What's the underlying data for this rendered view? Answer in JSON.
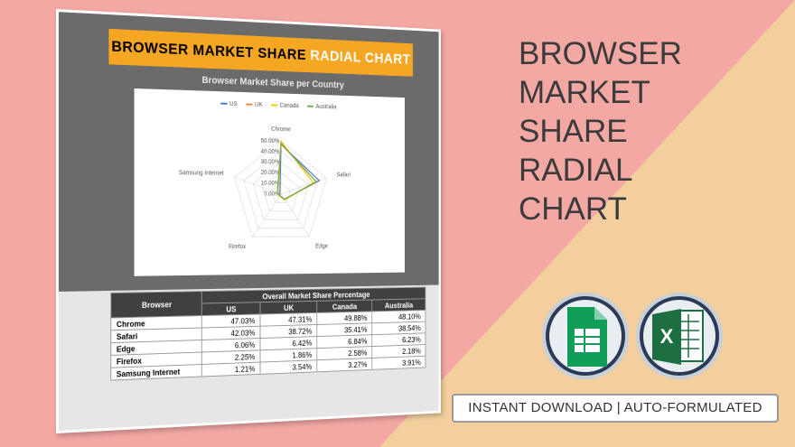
{
  "sheet_title": {
    "main": "BROWSER MARKET SHARE",
    "accent": "RADIAL CHART"
  },
  "chart_data": {
    "type": "radar",
    "title": "Browser Market Share per Country",
    "categories": [
      "Chrome",
      "Safari",
      "Edge",
      "Firefox",
      "Samsung Internet"
    ],
    "series": [
      {
        "name": "US",
        "color": "#4472c4",
        "values": [
          47.03,
          42.03,
          6.06,
          2.25,
          1.21
        ]
      },
      {
        "name": "UK",
        "color": "#ed7d31",
        "values": [
          47.31,
          38.72,
          6.42,
          1.86,
          3.54
        ]
      },
      {
        "name": "Canada",
        "color": "#ffc000",
        "values": [
          49.88,
          35.41,
          6.84,
          2.58,
          3.27
        ]
      },
      {
        "name": "Australia",
        "color": "#70ad47",
        "values": [
          48.1,
          38.54,
          6.23,
          2.18,
          3.91
        ]
      }
    ],
    "ylim": [
      0,
      50
    ],
    "yticks": [
      {
        "value": 0,
        "label": "0.00%"
      },
      {
        "value": 10,
        "label": "10.00%"
      },
      {
        "value": 20,
        "label": "20.00%"
      },
      {
        "value": 30,
        "label": "30.00%"
      },
      {
        "value": 40,
        "label": "40.00%"
      },
      {
        "value": 50,
        "label": "50.00%"
      }
    ],
    "grid": true,
    "legend": "top"
  },
  "table": {
    "header_group": "Overall Market Share Percentage",
    "columns": [
      "Browser",
      "US",
      "UK",
      "Canada",
      "Australia"
    ],
    "rows": [
      [
        "Chrome",
        "47.03%",
        "47.31%",
        "49.88%",
        "48.10%"
      ],
      [
        "Safari",
        "42.03%",
        "38.72%",
        "35.41%",
        "38.54%"
      ],
      [
        "Edge",
        "6.06%",
        "6.42%",
        "6.84%",
        "6.23%"
      ],
      [
        "Firefox",
        "2.25%",
        "1.86%",
        "2.58%",
        "2.18%"
      ],
      [
        "Samsung Internet",
        "1.21%",
        "3.54%",
        "3.27%",
        "3.91%"
      ]
    ]
  },
  "headline": "BROWSER MARKET SHARE RADIAL CHART",
  "banner": "INSTANT DOWNLOAD | AUTO-FORMULATED"
}
